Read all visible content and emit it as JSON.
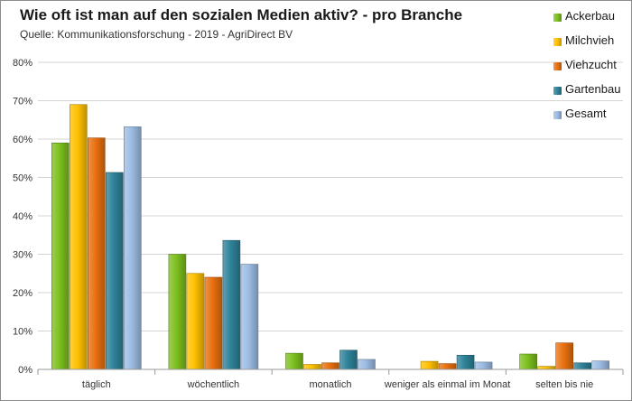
{
  "chart_data": {
    "type": "bar",
    "title": "Wie oft ist man auf den sozialen Medien aktiv? - pro Branche",
    "subtitle": "Quelle: Kommunikationsforschung - 2019 - AgriDirect BV",
    "xlabel": "",
    "ylabel": "",
    "ylim": [
      0,
      80
    ],
    "yticks": [
      "0%",
      "10%",
      "20%",
      "30%",
      "40%",
      "50%",
      "60%",
      "70%",
      "80%"
    ],
    "categories": [
      "täglich",
      "wöchentlich",
      "monatlich",
      "weniger als einmal im Monat",
      "selten bis nie"
    ],
    "grid": true,
    "legend_position": "right",
    "series": [
      {
        "name": "Ackerbau",
        "color": "#7cbf1e",
        "values": [
          59,
          30,
          4.2,
          0,
          4
        ]
      },
      {
        "name": "Milchvieh",
        "color": "#ffc000",
        "values": [
          69,
          25,
          1.3,
          2.1,
          0.8
        ]
      },
      {
        "name": "Viehzucht",
        "color": "#e8700f",
        "values": [
          60.3,
          24,
          1.7,
          1.5,
          6.9
        ]
      },
      {
        "name": "Gartenbau",
        "color": "#2e8299",
        "values": [
          51.3,
          33.6,
          5,
          3.7,
          1.7
        ]
      },
      {
        "name": "Gesamt",
        "color": "#9cbce3",
        "values": [
          63.2,
          27.4,
          2.6,
          1.9,
          2.2
        ]
      }
    ]
  }
}
